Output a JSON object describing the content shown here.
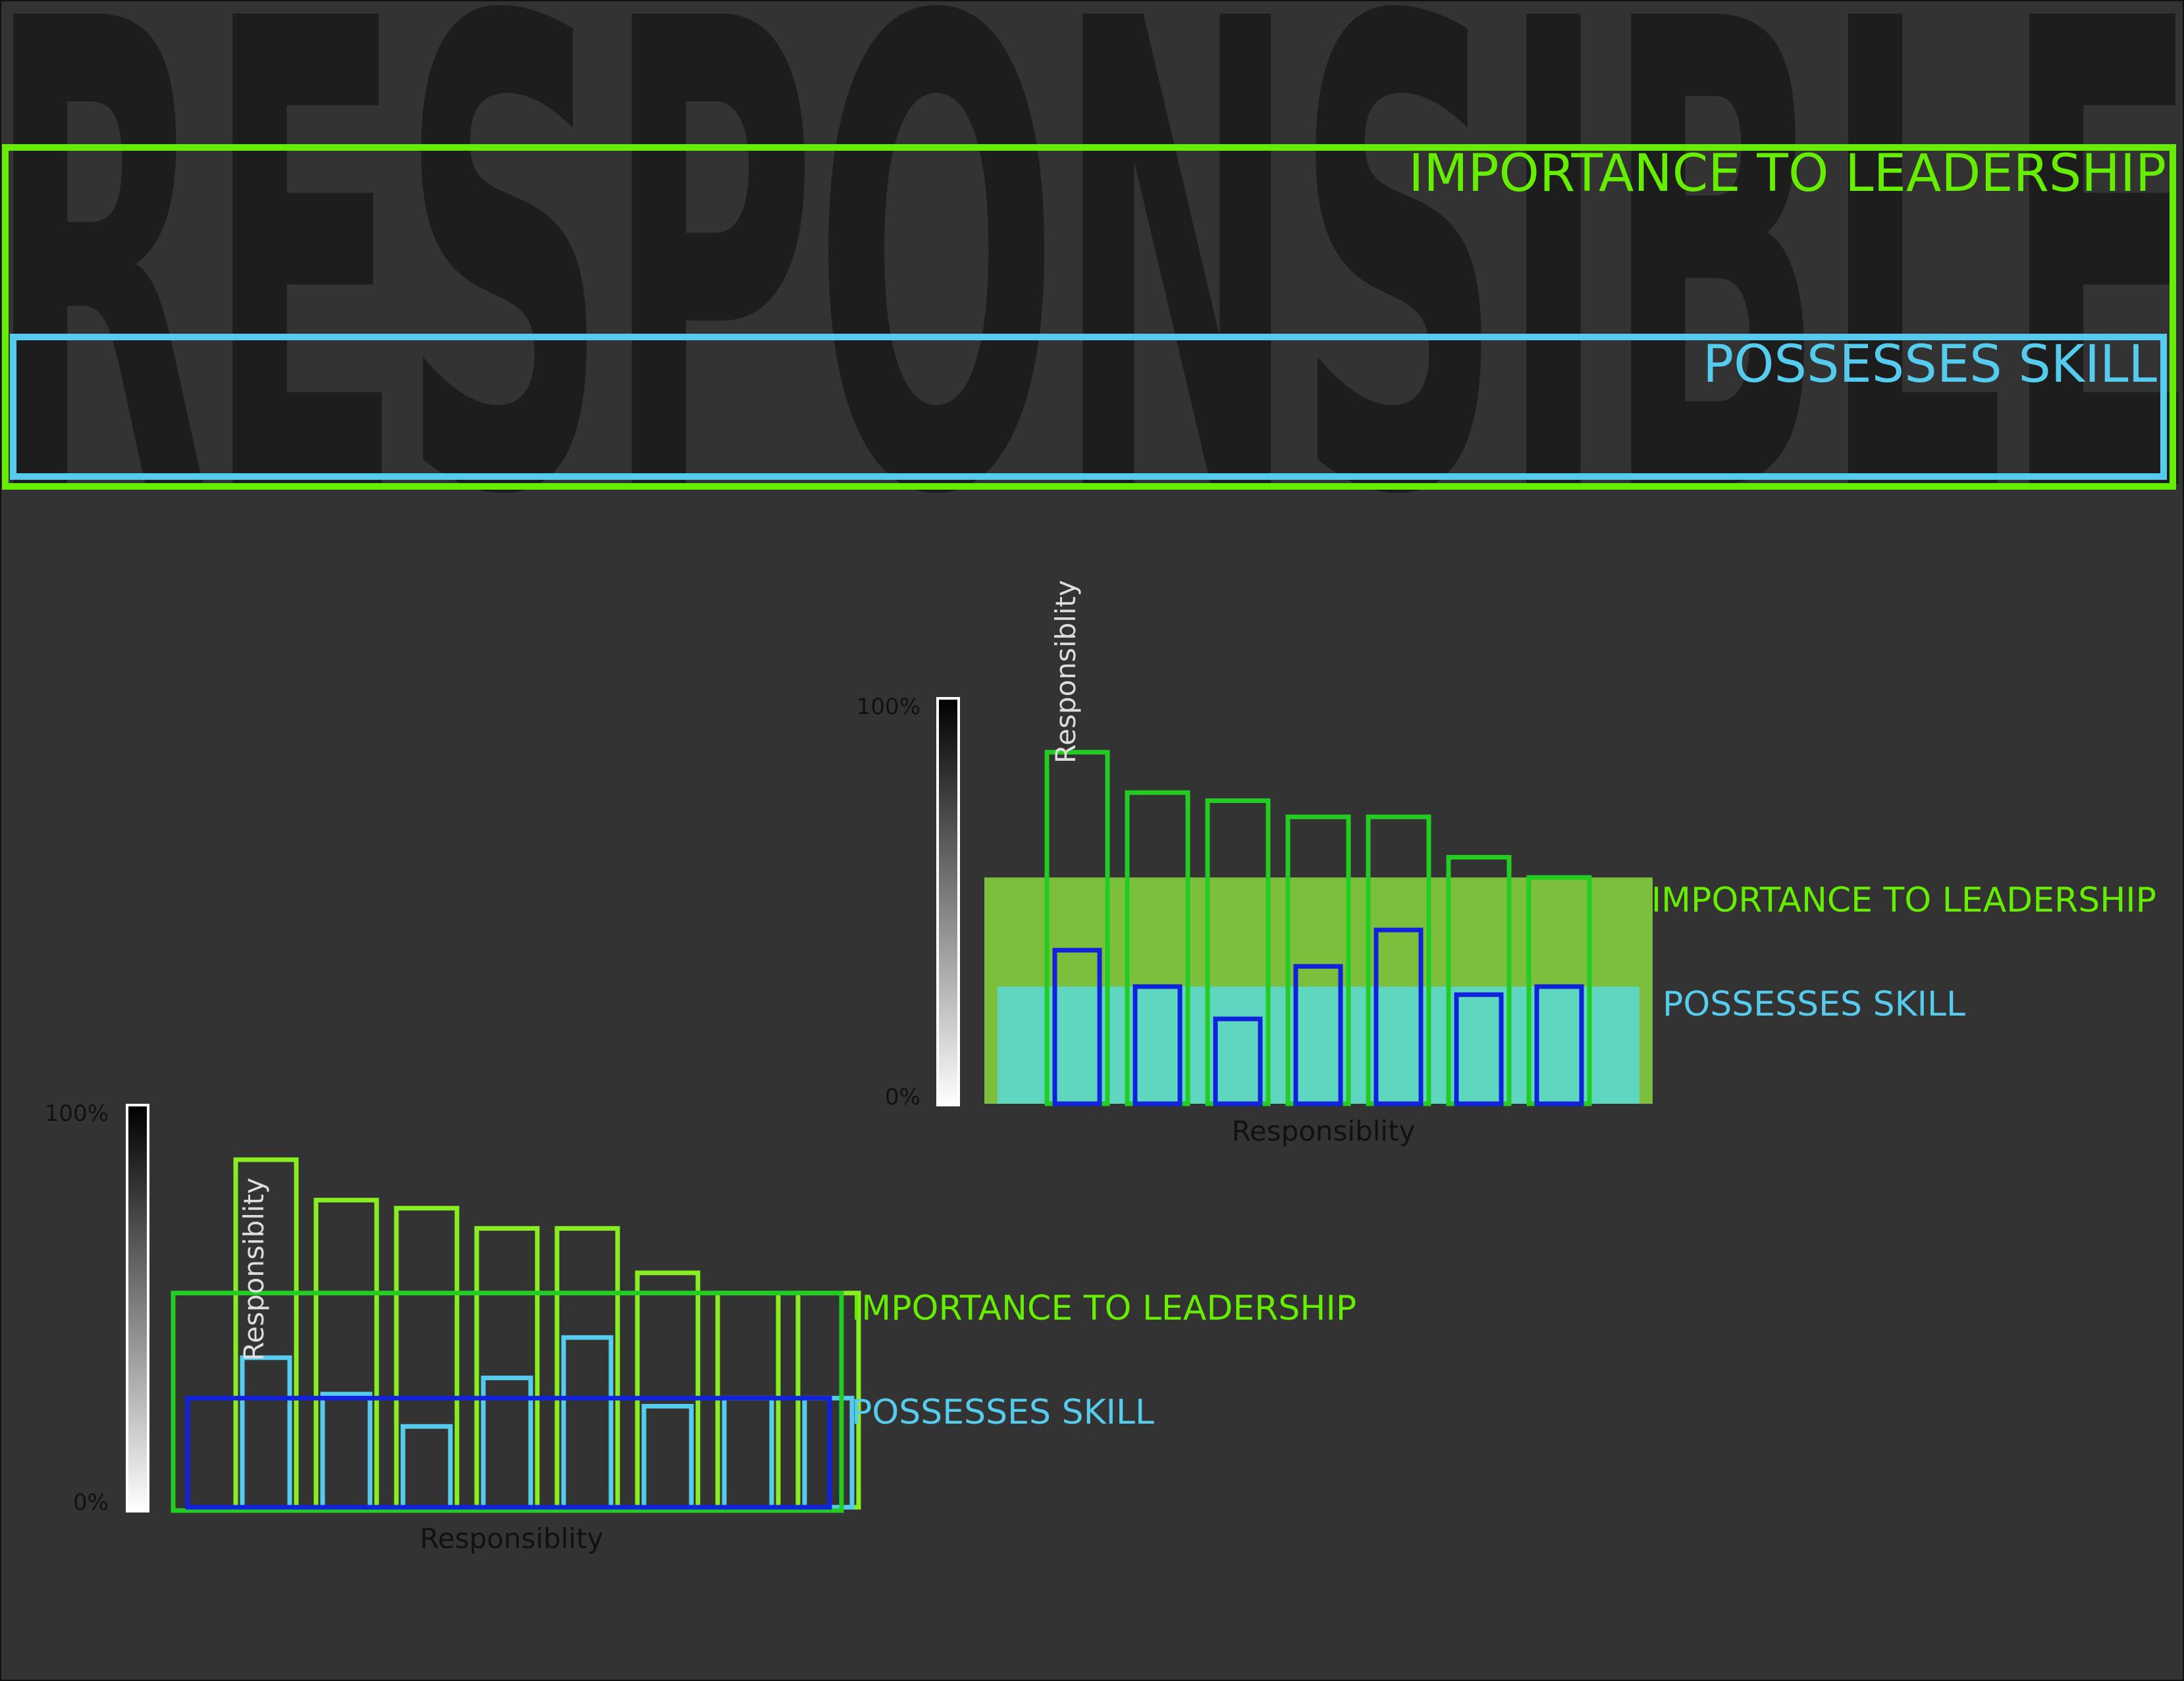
{
  "header": {
    "big_word": "RESPONSIBLE",
    "importance_label": "IMPORTANCE TO LEADERSHIP",
    "skill_label": "POSSESSES SKILL"
  },
  "colors": {
    "background": "#333333",
    "big_word": "#1d1d1d",
    "importance": "#66ee00",
    "importance_bar": "#22cc22",
    "skill": "#55ccee",
    "skill_bar_dark": "#1122dd",
    "axis_text": "#111111",
    "fill_importance": "#7cbf3c",
    "fill_skill": "#5fd6c0"
  },
  "chart_data": [
    {
      "type": "bar",
      "style": "filled-bands",
      "xlabel": "Responsiblity",
      "ylabel": "Responsiblity",
      "y_top_label": "100%",
      "y_bottom_label": "0%",
      "ylim": [
        0,
        100
      ],
      "series": [
        {
          "name": "IMPORTANCE TO LEADERSHIP",
          "values": [
            87,
            77,
            75,
            71,
            71,
            61,
            56
          ]
        },
        {
          "name": "POSSESSES SKILL",
          "values": [
            38,
            29,
            21,
            34,
            43,
            27,
            29
          ]
        }
      ],
      "bands": {
        "importance_level": 56,
        "skill_level": 29
      }
    },
    {
      "type": "bar",
      "style": "outlined-bands",
      "xlabel": "Responsiblity",
      "ylabel": "Responsiblity",
      "y_top_label": "100%",
      "y_bottom_label": "0%",
      "ylim": [
        0,
        100
      ],
      "series": [
        {
          "name": "IMPORTANCE TO LEADERSHIP",
          "values": [
            86,
            76,
            74,
            69,
            69,
            58,
            53,
            53
          ]
        },
        {
          "name": "POSSESSES SKILL",
          "values": [
            37,
            28,
            20,
            32,
            42,
            25,
            27,
            27
          ]
        }
      ],
      "bands": {
        "importance_level": 53,
        "skill_level": 27
      }
    }
  ]
}
